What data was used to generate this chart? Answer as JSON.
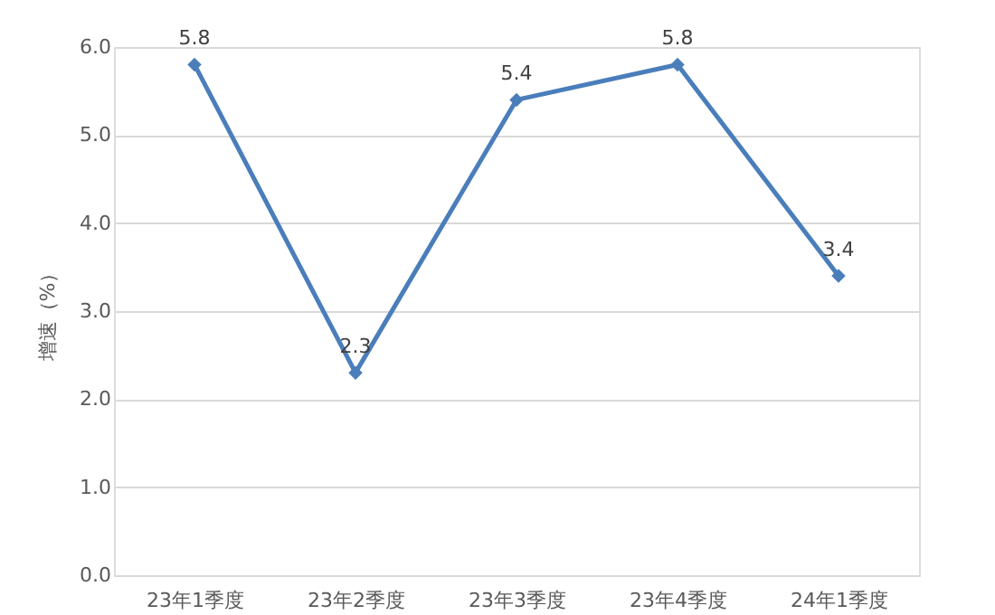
{
  "chart_data": {
    "type": "line",
    "categories": [
      "23年1季度",
      "23年2季度",
      "23年3季度",
      "23年4季度",
      "24年1季度"
    ],
    "series": [
      {
        "color": "#4a7ebb",
        "values": [
          5.8,
          2.3,
          5.4,
          5.8,
          3.4
        ]
      }
    ],
    "ylabel": "增速（%）",
    "ylim": [
      0,
      6
    ],
    "yticks": [
      {
        "value": 0,
        "label": "0.0"
      },
      {
        "value": 1,
        "label": "1.0"
      },
      {
        "value": 2,
        "label": "2.0"
      },
      {
        "value": 3,
        "label": "3.0"
      },
      {
        "value": 4,
        "label": "4.0"
      },
      {
        "value": 5,
        "label": "5.0"
      },
      {
        "value": 6,
        "label": "6.0"
      }
    ],
    "grid": "y",
    "marker": "diamond",
    "line_style": "solid",
    "data_labels": true
  }
}
